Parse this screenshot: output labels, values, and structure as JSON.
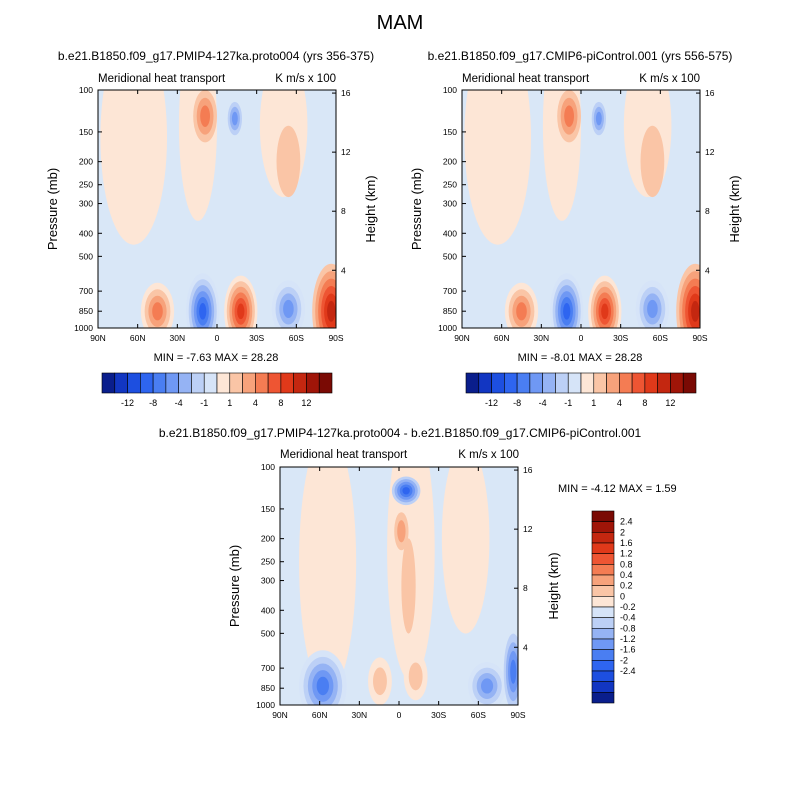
{
  "page_title": "MAM",
  "colors": {
    "blues": [
      "#0a1e8c",
      "#1236c2",
      "#1d4fe0",
      "#2e65f0",
      "#4a7ef2",
      "#6f98f4",
      "#95b3f4",
      "#bcd0f6",
      "#d6e4f8"
    ],
    "reds": [
      "#fde6d6",
      "#fac5a6",
      "#f7a27b",
      "#f47c53",
      "#ee5533",
      "#e0391a",
      "#c42710",
      "#a01508",
      "#7a0a04"
    ],
    "field_background": "#d9e7f7",
    "frame": "#000000"
  },
  "panels": [
    {
      "title": "b.e21.B1850.f09_g17.PMIP4-127ka.proto004 (yrs 356-375)",
      "left_label": "Meridional heat transport",
      "right_label": "K m/s x 100",
      "ylabel": "Pressure (mb)",
      "ylabel_right": "Height (km)",
      "stats_text": "MIN =  -7.63   MAX =  28.28"
    },
    {
      "title": "b.e21.B1850.f09_g17.CMIP6-piControl.001 (yrs 556-575)",
      "left_label": "Meridional heat transport",
      "right_label": "K m/s x 100",
      "ylabel": "Pressure (mb)",
      "ylabel_right": "Height (km)",
      "stats_text": "MIN =  -8.01   MAX =  28.28"
    },
    {
      "title": "b.e21.B1850.f09_g17.PMIP4-127ka.proto004 - b.e21.B1850.f09_g17.CMIP6-piControl.001",
      "left_label": "Meridional heat transport",
      "right_label": "K m/s x 100",
      "ylabel": "Pressure (mb)",
      "ylabel_right": "Height (km)",
      "stats_text": "MIN =  -4.12   MAX =   1.59"
    }
  ],
  "axes": {
    "x_ticks": [
      "90N",
      "60N",
      "30N",
      "0",
      "30S",
      "60S",
      "90S"
    ],
    "y_ticks": [
      "100",
      "150",
      "200",
      "250",
      "300",
      "400",
      "500",
      "700",
      "850",
      "1000"
    ],
    "height_ticks": [
      "16",
      "12",
      "8",
      "4"
    ]
  },
  "colorbar_top": {
    "labels": [
      "-12",
      "-8",
      "-4",
      "-1",
      "1",
      "4",
      "8",
      "12"
    ]
  },
  "colorbar_diff": {
    "labels": [
      "2.4",
      "2",
      "1.6",
      "1.2",
      "0.8",
      "0.4",
      "0.2",
      "0",
      "-0.2",
      "-0.4",
      "-0.8",
      "-1.2",
      "-1.6",
      "-2",
      "-2.4"
    ]
  },
  "chart_data": [
    {
      "type": "heatmap",
      "title": "b.e21.B1850.f09_g17.PMIP4-127ka.proto004 (yrs 356-375)",
      "xlabel": "",
      "ylabel": "Pressure (mb)",
      "x_categories": [
        "90N",
        "60N",
        "30N",
        "0",
        "30S",
        "60S",
        "90S"
      ],
      "y_categories": [
        "100",
        "150",
        "200",
        "250",
        "300",
        "400",
        "500",
        "700",
        "850",
        "1000"
      ],
      "units": "K m/s x 100",
      "min": -7.63,
      "max": 28.28
    },
    {
      "type": "heatmap",
      "title": "b.e21.B1850.f09_g17.CMIP6-piControl.001 (yrs 556-575)",
      "xlabel": "",
      "ylabel": "Pressure (mb)",
      "x_categories": [
        "90N",
        "60N",
        "30N",
        "0",
        "30S",
        "60S",
        "90S"
      ],
      "y_categories": [
        "100",
        "150",
        "200",
        "250",
        "300",
        "400",
        "500",
        "700",
        "850",
        "1000"
      ],
      "units": "K m/s x 100",
      "min": -8.01,
      "max": 28.28
    },
    {
      "type": "heatmap",
      "title": "b.e21.B1850.f09_g17.PMIP4-127ka.proto004 - b.e21.B1850.f09_g17.CMIP6-piControl.001",
      "xlabel": "",
      "ylabel": "Pressure (mb)",
      "x_categories": [
        "90N",
        "60N",
        "30N",
        "0",
        "30S",
        "60S",
        "90S"
      ],
      "y_categories": [
        "100",
        "150",
        "200",
        "250",
        "300",
        "400",
        "500",
        "700",
        "850",
        "1000"
      ],
      "units": "K m/s x 100",
      "min": -4.12,
      "max": 1.59
    }
  ]
}
